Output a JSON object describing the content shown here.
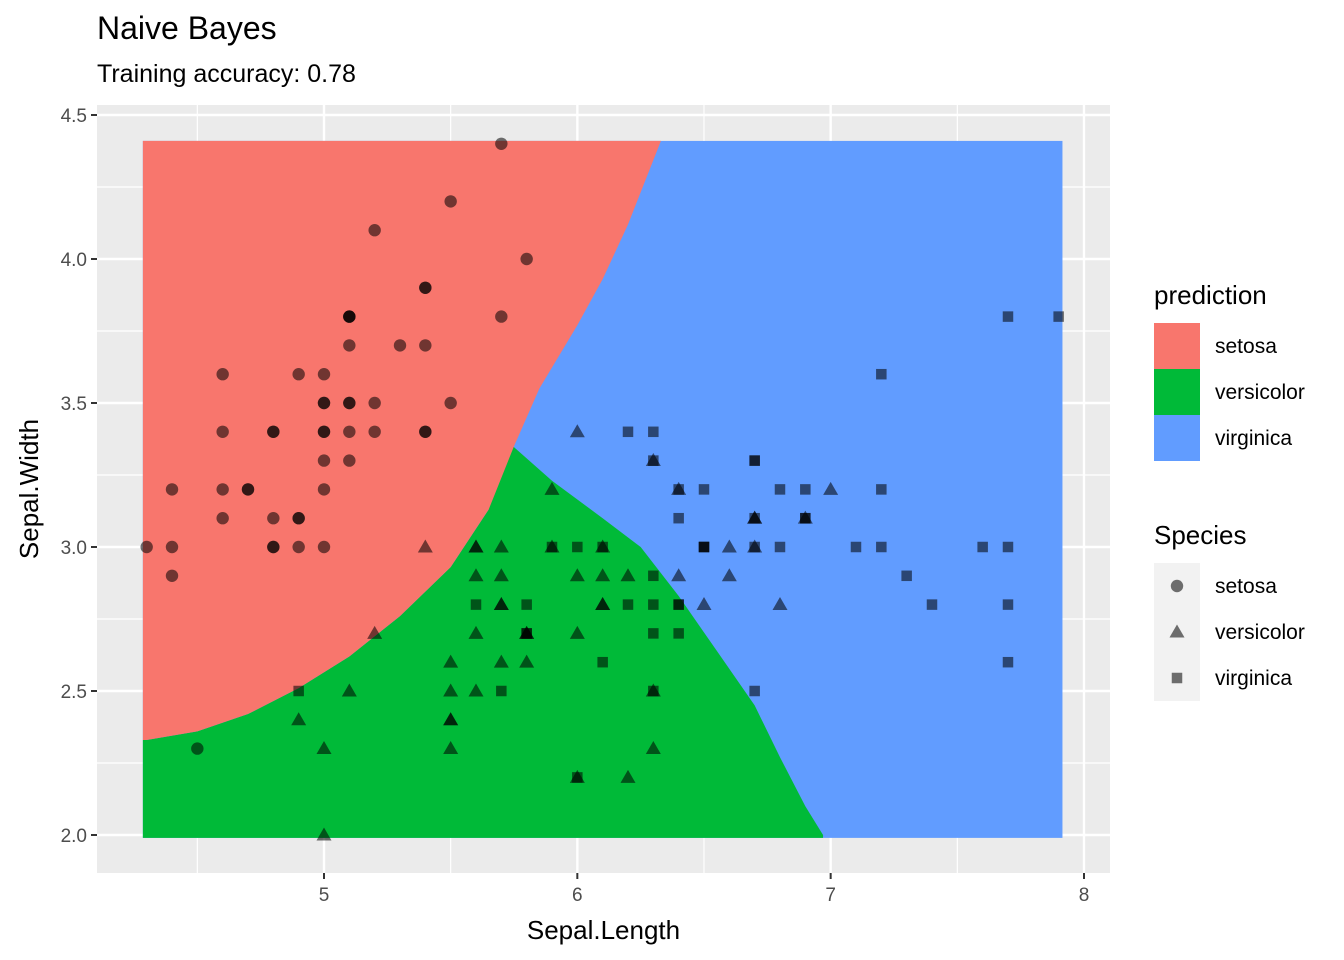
{
  "chart_data": {
    "type": "scatter",
    "title": "Naive Bayes",
    "subtitle": "Training accuracy: 0.78",
    "xlabel": "Sepal.Length",
    "ylabel": "Sepal.Width",
    "xlim": [
      4.3,
      7.9
    ],
    "ylim": [
      2.0,
      4.4
    ],
    "x_ticks": [
      5,
      6,
      7,
      8
    ],
    "y_ticks": [
      "2.0",
      "2.5",
      "3.0",
      "3.5",
      "4.0",
      "4.5"
    ],
    "grid": true,
    "background_color": "#EBEBEB",
    "legend_position": "right",
    "prediction_legend": {
      "title": "prediction",
      "items": [
        {
          "label": "setosa",
          "color": "#F8766D"
        },
        {
          "label": "versicolor",
          "color": "#00BA38"
        },
        {
          "label": "virginica",
          "color": "#619CFF"
        }
      ]
    },
    "species_legend": {
      "title": "Species",
      "items": [
        {
          "label": "setosa",
          "shape": "circle"
        },
        {
          "label": "versicolor",
          "shape": "triangle"
        },
        {
          "label": "virginica",
          "shape": "square"
        }
      ]
    },
    "decision_boundaries": {
      "setosa_top": [
        [
          4.3,
          2.33
        ],
        [
          4.5,
          2.36
        ],
        [
          4.7,
          2.42
        ],
        [
          4.9,
          2.51
        ],
        [
          5.1,
          2.62
        ],
        [
          5.3,
          2.76
        ],
        [
          5.5,
          2.93
        ],
        [
          5.65,
          3.13
        ],
        [
          5.75,
          3.35
        ],
        [
          5.85,
          3.55
        ],
        [
          6.0,
          3.77
        ],
        [
          6.1,
          3.93
        ],
        [
          6.2,
          4.12
        ],
        [
          6.33,
          4.41
        ]
      ],
      "versicolor_right": [
        [
          5.72,
          3.37
        ],
        [
          5.9,
          3.23
        ],
        [
          6.1,
          3.1
        ],
        [
          6.25,
          3.0
        ],
        [
          6.4,
          2.83
        ],
        [
          6.55,
          2.64
        ],
        [
          6.7,
          2.45
        ],
        [
          6.8,
          2.27
        ],
        [
          6.9,
          2.1
        ],
        [
          6.97,
          2.0
        ]
      ]
    },
    "series": [
      {
        "name": "setosa",
        "points": [
          [
            5.1,
            3.5
          ],
          [
            4.9,
            3.0
          ],
          [
            4.7,
            3.2
          ],
          [
            4.6,
            3.1
          ],
          [
            5.0,
            3.6
          ],
          [
            5.4,
            3.9
          ],
          [
            4.6,
            3.4
          ],
          [
            5.0,
            3.4
          ],
          [
            4.4,
            2.9
          ],
          [
            4.9,
            3.1
          ],
          [
            5.4,
            3.7
          ],
          [
            4.8,
            3.4
          ],
          [
            4.8,
            3.0
          ],
          [
            4.3,
            3.0
          ],
          [
            5.8,
            4.0
          ],
          [
            5.7,
            4.4
          ],
          [
            5.4,
            3.9
          ],
          [
            5.1,
            3.5
          ],
          [
            5.7,
            3.8
          ],
          [
            5.1,
            3.8
          ],
          [
            5.4,
            3.4
          ],
          [
            5.1,
            3.7
          ],
          [
            4.6,
            3.6
          ],
          [
            5.1,
            3.3
          ],
          [
            4.8,
            3.4
          ],
          [
            5.0,
            3.0
          ],
          [
            5.0,
            3.4
          ],
          [
            5.2,
            3.5
          ],
          [
            5.2,
            3.4
          ],
          [
            4.7,
            3.2
          ],
          [
            4.8,
            3.1
          ],
          [
            5.4,
            3.4
          ],
          [
            5.2,
            4.1
          ],
          [
            5.5,
            4.2
          ],
          [
            4.9,
            3.1
          ],
          [
            5.0,
            3.2
          ],
          [
            5.5,
            3.5
          ],
          [
            4.9,
            3.6
          ],
          [
            4.4,
            3.0
          ],
          [
            5.1,
            3.4
          ],
          [
            5.0,
            3.5
          ],
          [
            4.5,
            2.3
          ],
          [
            4.4,
            3.2
          ],
          [
            5.0,
            3.5
          ],
          [
            5.1,
            3.8
          ],
          [
            4.8,
            3.0
          ],
          [
            5.1,
            3.8
          ],
          [
            4.6,
            3.2
          ],
          [
            5.3,
            3.7
          ],
          [
            5.0,
            3.3
          ]
        ]
      },
      {
        "name": "versicolor",
        "points": [
          [
            7.0,
            3.2
          ],
          [
            6.4,
            3.2
          ],
          [
            6.9,
            3.1
          ],
          [
            5.5,
            2.3
          ],
          [
            6.5,
            2.8
          ],
          [
            5.7,
            2.8
          ],
          [
            6.3,
            3.3
          ],
          [
            4.9,
            2.4
          ],
          [
            6.6,
            2.9
          ],
          [
            5.2,
            2.7
          ],
          [
            5.0,
            2.0
          ],
          [
            5.9,
            3.0
          ],
          [
            6.0,
            2.2
          ],
          [
            6.1,
            2.9
          ],
          [
            5.6,
            2.9
          ],
          [
            6.7,
            3.1
          ],
          [
            5.6,
            3.0
          ],
          [
            5.8,
            2.7
          ],
          [
            6.2,
            2.2
          ],
          [
            5.6,
            2.5
          ],
          [
            5.9,
            3.2
          ],
          [
            6.1,
            2.8
          ],
          [
            6.3,
            2.5
          ],
          [
            6.1,
            2.8
          ],
          [
            6.4,
            2.9
          ],
          [
            6.6,
            3.0
          ],
          [
            6.8,
            2.8
          ],
          [
            6.7,
            3.0
          ],
          [
            6.0,
            2.9
          ],
          [
            5.7,
            2.6
          ],
          [
            5.5,
            2.4
          ],
          [
            5.5,
            2.4
          ],
          [
            5.8,
            2.7
          ],
          [
            6.0,
            2.7
          ],
          [
            5.4,
            3.0
          ],
          [
            6.0,
            3.4
          ],
          [
            6.7,
            3.1
          ],
          [
            6.3,
            2.3
          ],
          [
            5.6,
            3.0
          ],
          [
            5.5,
            2.5
          ],
          [
            5.5,
            2.6
          ],
          [
            6.1,
            3.0
          ],
          [
            5.8,
            2.6
          ],
          [
            5.0,
            2.3
          ],
          [
            5.6,
            2.7
          ],
          [
            5.7,
            3.0
          ],
          [
            5.7,
            2.9
          ],
          [
            6.2,
            2.9
          ],
          [
            5.1,
            2.5
          ],
          [
            5.7,
            2.8
          ]
        ]
      },
      {
        "name": "virginica",
        "points": [
          [
            6.3,
            3.3
          ],
          [
            5.8,
            2.7
          ],
          [
            7.1,
            3.0
          ],
          [
            6.3,
            2.9
          ],
          [
            6.5,
            3.0
          ],
          [
            7.6,
            3.0
          ],
          [
            4.9,
            2.5
          ],
          [
            7.3,
            2.9
          ],
          [
            6.7,
            2.5
          ],
          [
            7.2,
            3.6
          ],
          [
            6.5,
            3.2
          ],
          [
            6.4,
            2.7
          ],
          [
            6.8,
            3.0
          ],
          [
            5.7,
            2.5
          ],
          [
            5.8,
            2.8
          ],
          [
            6.4,
            3.2
          ],
          [
            6.5,
            3.0
          ],
          [
            7.7,
            3.8
          ],
          [
            7.7,
            2.6
          ],
          [
            6.0,
            2.2
          ],
          [
            6.9,
            3.2
          ],
          [
            5.6,
            2.8
          ],
          [
            7.7,
            2.8
          ],
          [
            6.3,
            2.7
          ],
          [
            6.7,
            3.3
          ],
          [
            7.2,
            3.2
          ],
          [
            6.2,
            2.8
          ],
          [
            6.1,
            3.0
          ],
          [
            6.4,
            2.8
          ],
          [
            7.2,
            3.0
          ],
          [
            7.4,
            2.8
          ],
          [
            7.9,
            3.8
          ],
          [
            6.4,
            2.8
          ],
          [
            6.3,
            2.8
          ],
          [
            6.1,
            2.6
          ],
          [
            7.7,
            3.0
          ],
          [
            6.3,
            3.4
          ],
          [
            6.4,
            3.1
          ],
          [
            6.0,
            3.0
          ],
          [
            6.9,
            3.1
          ],
          [
            6.7,
            3.1
          ],
          [
            6.9,
            3.1
          ],
          [
            5.8,
            2.7
          ],
          [
            6.8,
            3.2
          ],
          [
            6.7,
            3.3
          ],
          [
            6.7,
            3.0
          ],
          [
            6.3,
            2.5
          ],
          [
            6.5,
            3.0
          ],
          [
            6.2,
            3.4
          ],
          [
            5.9,
            3.0
          ]
        ]
      }
    ]
  }
}
